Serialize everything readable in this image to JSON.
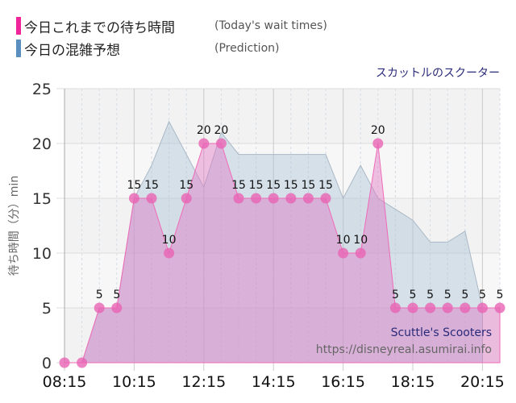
{
  "legend": [
    {
      "label": "今日これまでの待ち時間",
      "label_en": "(Today's wait times)",
      "color": "#f0259a"
    },
    {
      "label": "今日の混雑予想",
      "label_en": "(Prediction)",
      "color": "#5b8fbf"
    }
  ],
  "attraction_jp": "スカットルのスクーター",
  "watermark": {
    "name": "Scuttle's Scooters",
    "url": "https://disneyreal.asumirai.info"
  },
  "chart_data": {
    "type": "area",
    "title": "",
    "xlabel": "",
    "ylabel": "待ち時間（分）min",
    "ylim": [
      0,
      25
    ],
    "yticks": [
      "0",
      "5",
      "10",
      "15",
      "20",
      "25"
    ],
    "xticks": [
      "08:15",
      "10:15",
      "12:15",
      "14:15",
      "16:15",
      "18:15",
      "20:15"
    ],
    "x": [
      "08:15",
      "08:45",
      "09:15",
      "09:45",
      "10:15",
      "10:45",
      "11:15",
      "11:45",
      "12:15",
      "12:45",
      "13:15",
      "13:45",
      "14:15",
      "14:45",
      "15:15",
      "15:45",
      "16:15",
      "16:45",
      "17:15",
      "17:45",
      "18:15",
      "18:45",
      "19:15",
      "19:45",
      "20:15",
      "20:45"
    ],
    "grid": true,
    "series": [
      {
        "name": "今日の混雑予想",
        "color": "#b8c9d9",
        "values": [
          0,
          0,
          5,
          5,
          15,
          18,
          22,
          19,
          16,
          21,
          19,
          19,
          19,
          19,
          19,
          19,
          15,
          18,
          15,
          14,
          13,
          11,
          11,
          12,
          5,
          null
        ]
      },
      {
        "name": "今日これまでの待ち時間",
        "color": "#e86bb8",
        "values": [
          0,
          0,
          5,
          5,
          15,
          15,
          10,
          15,
          20,
          20,
          15,
          15,
          15,
          15,
          15,
          15,
          10,
          10,
          20,
          5,
          5,
          5,
          5,
          5,
          5,
          5
        ]
      }
    ]
  }
}
